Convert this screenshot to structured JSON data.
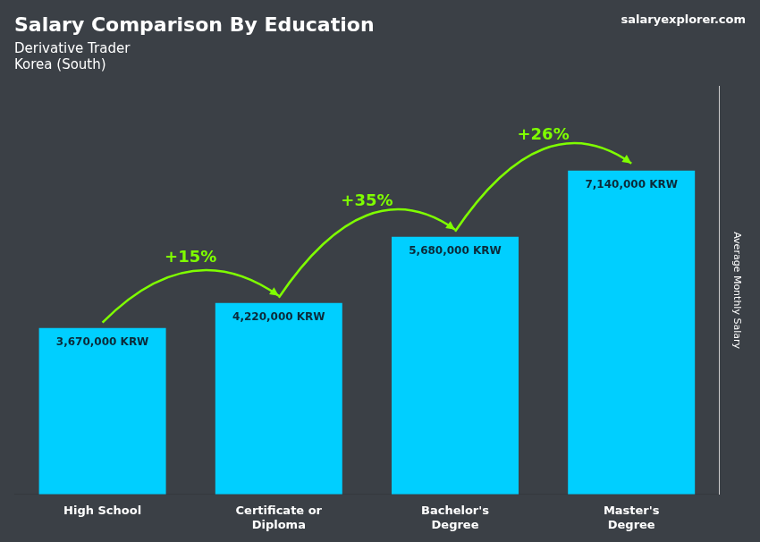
{
  "chart_data": {
    "type": "bar",
    "title": "Salary Comparison By Education",
    "subtitle": "Derivative Trader",
    "location": "Korea (South)",
    "source": "salaryexplorer.com",
    "ylabel": "Average Monthly Salary",
    "categories": [
      "High School",
      "Certificate or\nDiploma",
      "Bachelor's\nDegree",
      "Master's\nDegree"
    ],
    "values": [
      3670000,
      4220000,
      5680000,
      7140000
    ],
    "value_labels": [
      "3,670,000 KRW",
      "4,220,000 KRW",
      "5,680,000 KRW",
      "7,140,000 KRW"
    ],
    "data_labels": true,
    "color": "#00cfff",
    "ylim": [
      0,
      9000000
    ],
    "grid": false,
    "tick_labels": "x",
    "annotations": [
      {
        "text": "+15%",
        "color": "#7fff00"
      },
      {
        "text": "+35%",
        "color": "#7fff00"
      },
      {
        "text": "+26%",
        "color": "#7fff00"
      }
    ]
  }
}
